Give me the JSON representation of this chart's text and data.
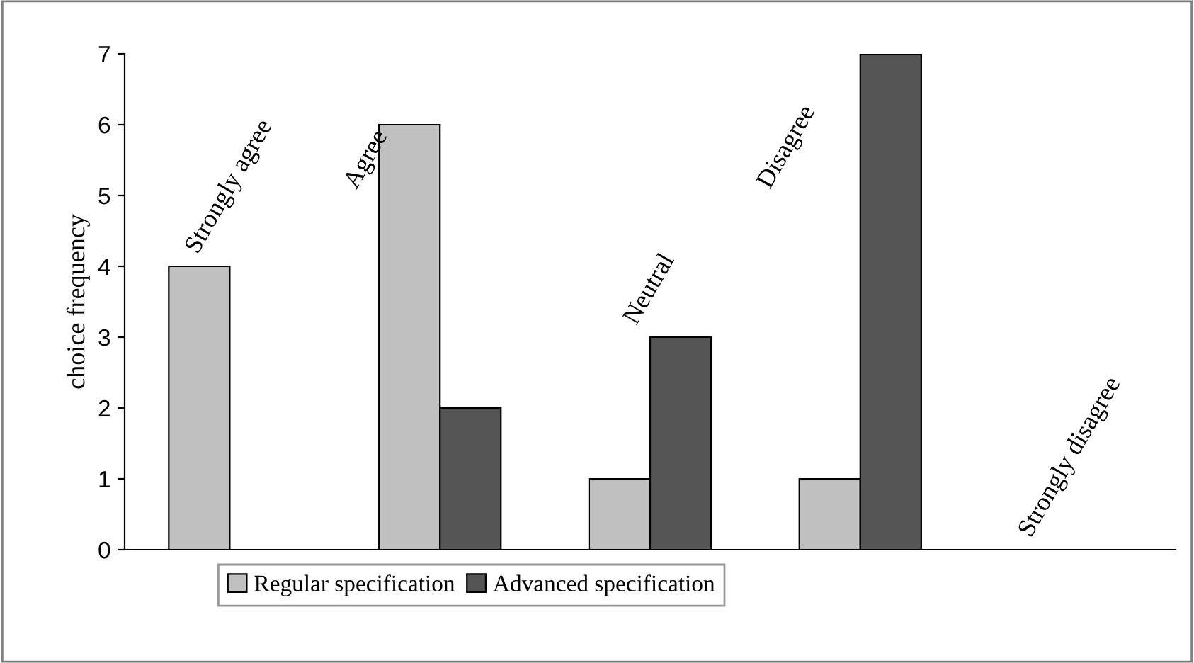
{
  "chart_data": {
    "type": "bar",
    "ylabel": "choice frequency",
    "categories": [
      "Strongly agree",
      "Agree",
      "Neutral",
      "Disagree",
      "Strongly disagree"
    ],
    "series": [
      {
        "name": "Regular specification",
        "color": "#c0c0c0",
        "values": [
          4,
          6,
          1,
          1,
          null
        ]
      },
      {
        "name": "Advanced specification",
        "color": "#555555",
        "values": [
          null,
          2,
          3,
          7,
          null
        ]
      }
    ],
    "ylim": [
      0,
      7
    ],
    "yticks": [
      0,
      1,
      2,
      3,
      4,
      5,
      6,
      7
    ],
    "grid": false,
    "legend": "bottom",
    "tick_labels": "y"
  }
}
